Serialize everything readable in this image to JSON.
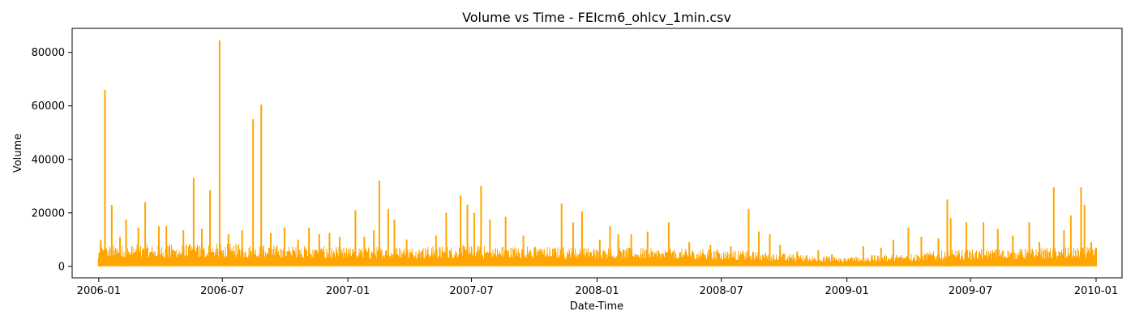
{
  "chart_data": {
    "type": "line",
    "title": "Volume vs Time - FEIcm6_ohlcv_1min.csv",
    "xlabel": "Date-Time",
    "ylabel": "Volume",
    "xlim": [
      "2005-11-23",
      "2010-02-08"
    ],
    "ylim": [
      -4300,
      89000
    ],
    "x_ticks": [
      "2006-01",
      "2006-07",
      "2007-01",
      "2007-07",
      "2008-01",
      "2008-07",
      "2009-01",
      "2009-07",
      "2010-01"
    ],
    "y_ticks": [
      0,
      20000,
      40000,
      60000,
      80000
    ],
    "y_tick_labels": [
      "0",
      "20000",
      "40000",
      "60000",
      "80000"
    ],
    "grid": false,
    "legend": "none",
    "colors": {
      "series": "#FFA500"
    },
    "series": [
      {
        "peaks": [
          [
            "2006-01-01",
            3000
          ],
          [
            "2006-01-04",
            10000
          ],
          [
            "2006-01-10",
            66000
          ],
          [
            "2006-01-20",
            23000
          ],
          [
            "2006-02-01",
            11000
          ],
          [
            "2006-02-10",
            17500
          ],
          [
            "2006-02-28",
            14500
          ],
          [
            "2006-03-10",
            24000
          ],
          [
            "2006-03-30",
            15000
          ],
          [
            "2006-04-10",
            15000
          ],
          [
            "2006-05-05",
            13500
          ],
          [
            "2006-05-20",
            33000
          ],
          [
            "2006-06-01",
            14000
          ],
          [
            "2006-06-13",
            28500
          ],
          [
            "2006-06-27",
            84500
          ],
          [
            "2006-07-10",
            12000
          ],
          [
            "2006-07-30",
            13500
          ],
          [
            "2006-08-15",
            55000
          ],
          [
            "2006-08-27",
            60500
          ],
          [
            "2006-09-10",
            12500
          ],
          [
            "2006-09-30",
            14500
          ],
          [
            "2006-10-20",
            10000
          ],
          [
            "2006-11-05",
            14500
          ],
          [
            "2006-11-20",
            12000
          ],
          [
            "2006-12-05",
            12500
          ],
          [
            "2006-12-20",
            11000
          ],
          [
            "2007-01-12",
            21000
          ],
          [
            "2007-01-25",
            11000
          ],
          [
            "2007-02-08",
            13500
          ],
          [
            "2007-02-16",
            32000
          ],
          [
            "2007-03-01",
            21500
          ],
          [
            "2007-03-10",
            17500
          ],
          [
            "2007-03-28",
            10000
          ],
          [
            "2007-04-20",
            6000
          ],
          [
            "2007-05-10",
            11500
          ],
          [
            "2007-05-25",
            20000
          ],
          [
            "2007-06-15",
            26500
          ],
          [
            "2007-06-25",
            23000
          ],
          [
            "2007-07-05",
            20000
          ],
          [
            "2007-07-15",
            30000
          ],
          [
            "2007-07-28",
            17500
          ],
          [
            "2007-08-20",
            18500
          ],
          [
            "2007-09-15",
            11500
          ],
          [
            "2007-10-10",
            6500
          ],
          [
            "2007-11-10",
            23500
          ],
          [
            "2007-11-27",
            16500
          ],
          [
            "2007-12-10",
            20500
          ],
          [
            "2008-01-05",
            10000
          ],
          [
            "2008-01-20",
            15000
          ],
          [
            "2008-02-01",
            12000
          ],
          [
            "2008-02-20",
            12000
          ],
          [
            "2008-03-15",
            13000
          ],
          [
            "2008-04-15",
            16500
          ],
          [
            "2008-05-15",
            9000
          ],
          [
            "2008-06-15",
            8000
          ],
          [
            "2008-07-15",
            7500
          ],
          [
            "2008-08-10",
            21500
          ],
          [
            "2008-08-25",
            13000
          ],
          [
            "2008-09-10",
            12000
          ],
          [
            "2008-09-25",
            8000
          ],
          [
            "2008-10-20",
            5500
          ],
          [
            "2008-11-20",
            6000
          ],
          [
            "2008-12-10",
            4500
          ],
          [
            "2009-01-05",
            2500
          ],
          [
            "2009-01-25",
            7500
          ],
          [
            "2009-02-20",
            7000
          ],
          [
            "2009-03-10",
            10000
          ],
          [
            "2009-04-01",
            14500
          ],
          [
            "2009-04-20",
            11000
          ],
          [
            "2009-05-15",
            10500
          ],
          [
            "2009-05-28",
            25000
          ],
          [
            "2009-06-02",
            18000
          ],
          [
            "2009-06-25",
            16500
          ],
          [
            "2009-07-20",
            16500
          ],
          [
            "2009-08-10",
            14000
          ],
          [
            "2009-09-01",
            11500
          ],
          [
            "2009-09-25",
            16500
          ],
          [
            "2009-10-10",
            9000
          ],
          [
            "2009-10-31",
            29500
          ],
          [
            "2009-11-15",
            13500
          ],
          [
            "2009-11-25",
            19000
          ],
          [
            "2009-12-10",
            29500
          ],
          [
            "2009-12-15",
            23000
          ],
          [
            "2009-12-25",
            9000
          ],
          [
            "2010-01-01",
            7000
          ]
        ],
        "typical_level": [
          [
            "2006-01-01",
            5500
          ],
          [
            "2006-07-01",
            6000
          ],
          [
            "2007-01-01",
            5000
          ],
          [
            "2007-07-01",
            5500
          ],
          [
            "2008-01-01",
            5000
          ],
          [
            "2008-07-01",
            4500
          ],
          [
            "2008-11-01",
            3000
          ],
          [
            "2009-01-01",
            2500
          ],
          [
            "2009-07-01",
            4500
          ],
          [
            "2010-01-01",
            5000
          ]
        ],
        "range": [
          "2006-01-01",
          "2010-01-01"
        ]
      }
    ]
  }
}
